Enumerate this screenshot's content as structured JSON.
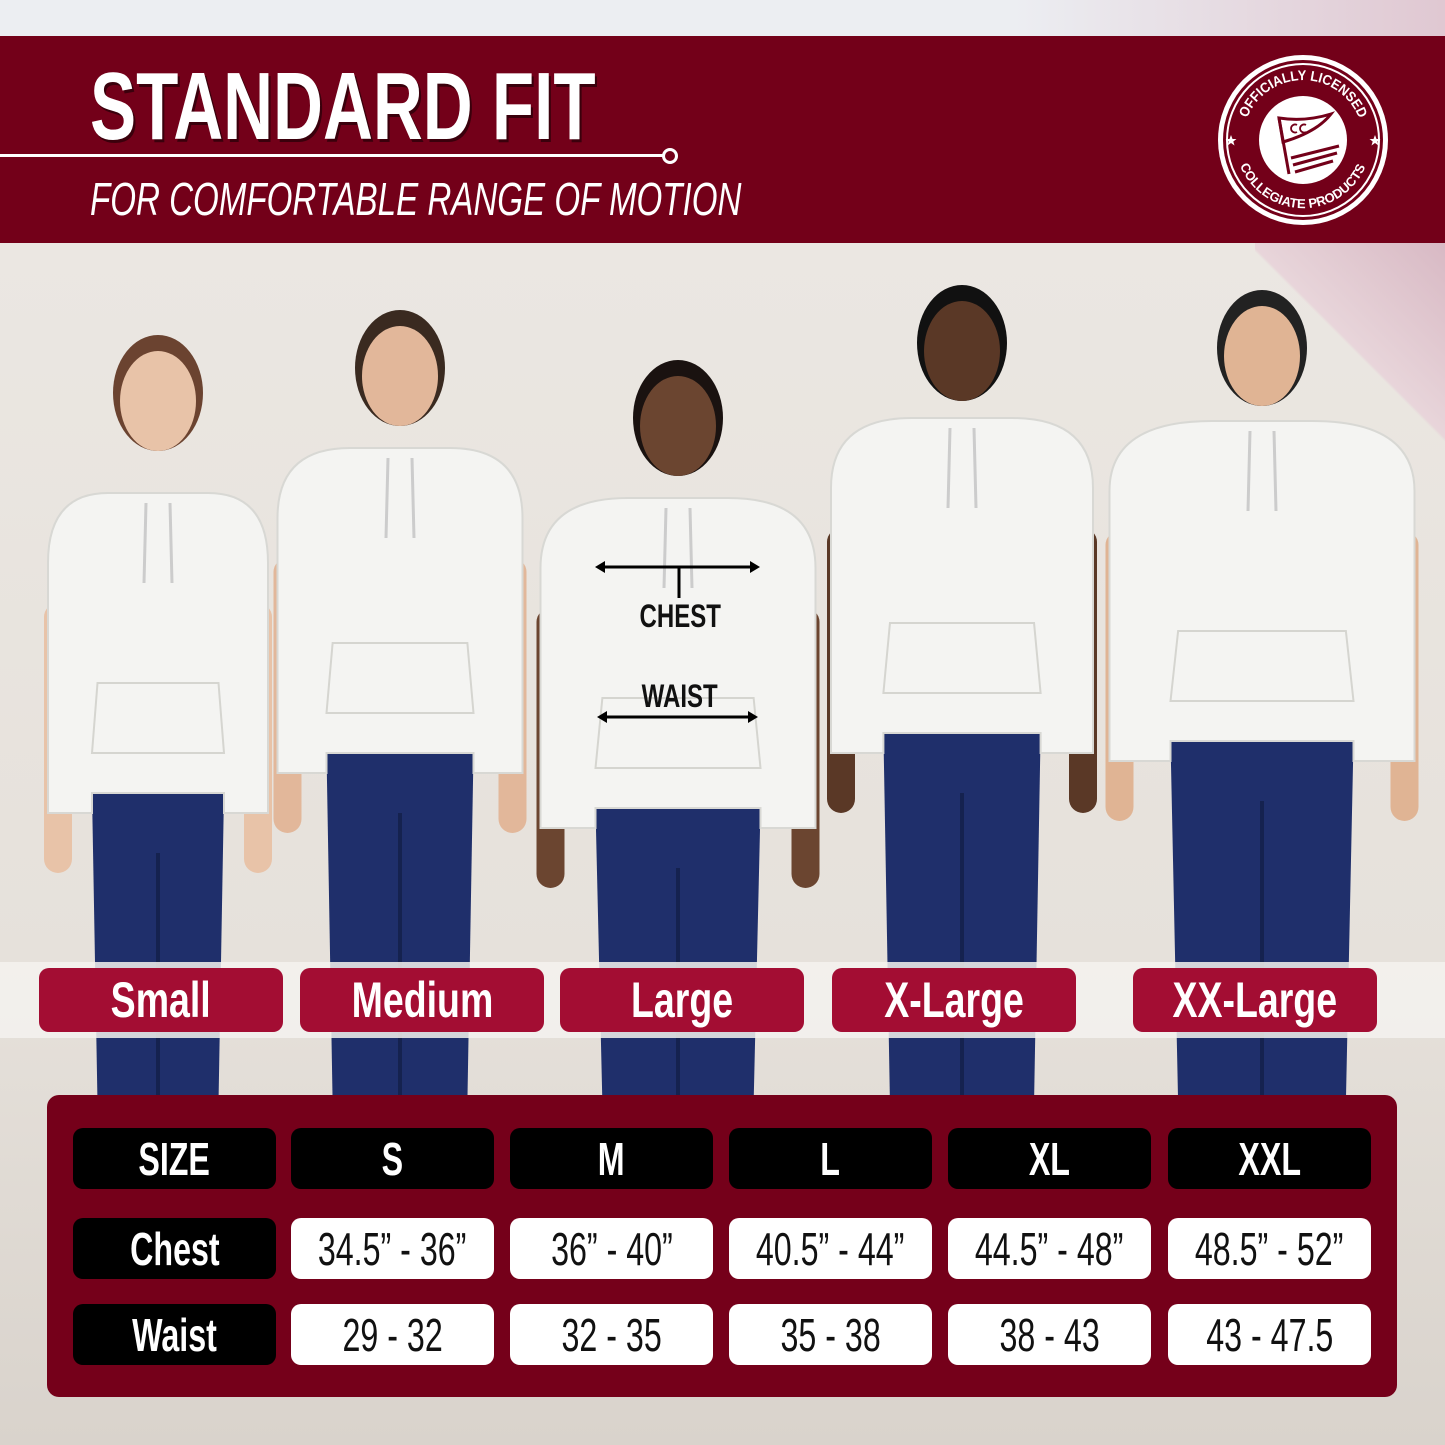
{
  "header": {
    "title": "STANDARD FIT",
    "subtitle": "FOR COMFORTABLE RANGE OF MOTION",
    "seal_text": [
      "OFFICIALLY LICENSED",
      "COLLEGIATE PRODUCTS",
      "CC"
    ]
  },
  "colors": {
    "maroon": "#730019",
    "pill": "#a30d33",
    "header_cell": "#000000",
    "value_cell": "#ffffff"
  },
  "model_annotations": {
    "chest": "CHEST",
    "waist": "WAIST"
  },
  "size_labels": [
    "Small",
    "Medium",
    "Large",
    "X-Large",
    "XX-Large"
  ],
  "size_table": {
    "headers": [
      "SIZE",
      "S",
      "M",
      "L",
      "XL",
      "XXL"
    ],
    "rows": [
      {
        "label": "Chest",
        "values": [
          "34.5” - 36”",
          "36” - 40”",
          "40.5” - 44”",
          "44.5” - 48”",
          "48.5” - 52”"
        ]
      },
      {
        "label": "Waist",
        "values": [
          "29 - 32",
          "32 - 35",
          "35 - 38",
          "38 - 43",
          "43 - 47.5"
        ]
      }
    ]
  }
}
